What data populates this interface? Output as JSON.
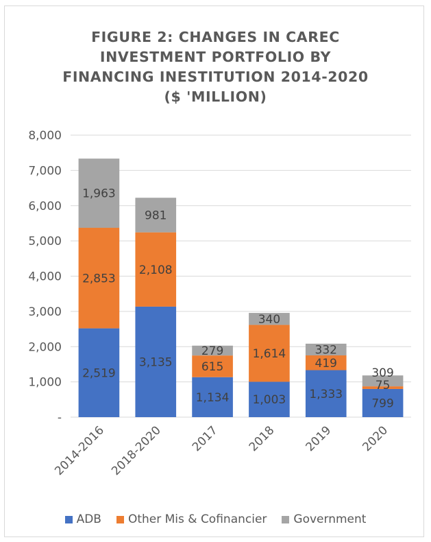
{
  "chart_data": {
    "type": "bar",
    "stacked": true,
    "title_lines": [
      "FIGURE 2: CHANGES IN CAREC",
      "INVESTMENT PORTFOLIO BY",
      "FINANCING INESTITUTION 2014-2020",
      "($ 'MILLION)"
    ],
    "categories": [
      "2014-2016",
      "2018-2020",
      "2017",
      "2018",
      "2019",
      "2020"
    ],
    "series": [
      {
        "name": "ADB",
        "color": "#4472c4",
        "values": [
          2519,
          3135,
          1134,
          1003,
          1333,
          799
        ],
        "labels": [
          "2,519",
          "3,135",
          "1,134",
          "1,003",
          "1,333",
          "799"
        ]
      },
      {
        "name": "Other Mis & Cofinancier",
        "color": "#ed7d31",
        "values": [
          2853,
          2108,
          615,
          1614,
          419,
          75
        ],
        "labels": [
          "2,853",
          "2,108",
          "615",
          "1,614",
          "419",
          "75"
        ]
      },
      {
        "name": "Government",
        "color": "#a5a5a5",
        "values": [
          1963,
          981,
          279,
          340,
          332,
          309
        ],
        "labels": [
          "1,963",
          "981",
          "279",
          "340",
          "332",
          "309"
        ]
      }
    ],
    "y_ticks": [
      {
        "value": 0,
        "label": "-"
      },
      {
        "value": 1000,
        "label": "1,000"
      },
      {
        "value": 2000,
        "label": "2,000"
      },
      {
        "value": 3000,
        "label": "3,000"
      },
      {
        "value": 4000,
        "label": "4,000"
      },
      {
        "value": 5000,
        "label": "5,000"
      },
      {
        "value": 6000,
        "label": "6,000"
      },
      {
        "value": 7000,
        "label": "7,000"
      },
      {
        "value": 8000,
        "label": "8,000"
      }
    ],
    "ylim": [
      0,
      8000
    ],
    "grid": true,
    "legend_position": "bottom"
  }
}
